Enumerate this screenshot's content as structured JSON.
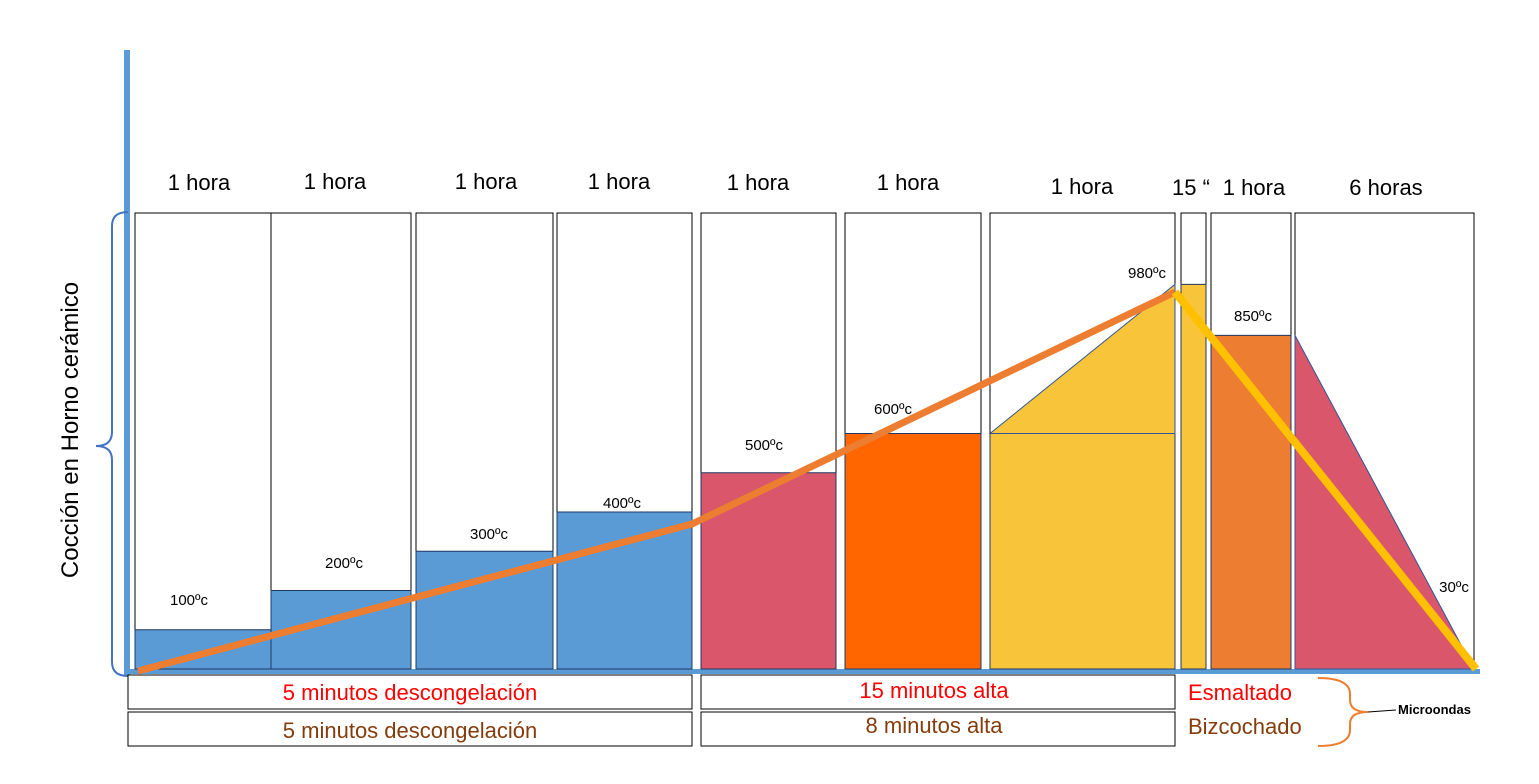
{
  "y_axis_label": "Cocción en Horno cerámico",
  "segments": [
    {
      "duration": "1 hora",
      "temp": "100ºc",
      "level": 100,
      "fill": "#5b9bd5"
    },
    {
      "duration": "1 hora",
      "temp": "200ºc",
      "level": 200,
      "fill": "#5b9bd5"
    },
    {
      "duration": "1 hora",
      "temp": "300ºc",
      "level": 300,
      "fill": "#5b9bd5"
    },
    {
      "duration": "1 hora",
      "temp": "400ºc",
      "level": 400,
      "fill": "#5b9bd5"
    },
    {
      "duration": "1 hora",
      "temp": "500ºc",
      "level": 500,
      "fill": "#d9566b"
    },
    {
      "duration": "1 hora",
      "temp": "600ºc",
      "level": 600,
      "fill": "#ff6600"
    },
    {
      "duration": "1 hora",
      "temp": "980ºc",
      "level": 980,
      "fill": "#f8c43a"
    },
    {
      "duration": "15 “",
      "temp": "",
      "level": 980,
      "fill": "#f8c43a"
    },
    {
      "duration": "1 hora",
      "temp": "850ºc",
      "level": 850,
      "fill": "#ed7d31"
    },
    {
      "duration": "6 horas",
      "temp": "30ºc",
      "level": 30,
      "fill": "#d9566b"
    }
  ],
  "bottom_rows": {
    "esmaltado": {
      "left": "5 minutos descongelación",
      "middle": "15 minutos alta",
      "label": "Esmaltado",
      "color": "#ff0000"
    },
    "bizcochado": {
      "left": "5 minutos descongelación",
      "middle": "8 minutos alta",
      "label": "Bizcochado",
      "color": "#843c0c"
    },
    "microondas_label": "Microondas"
  },
  "colors": {
    "axis": "#5b9bd5",
    "orange_line": "#ed7d31",
    "yellow_line": "#ffc000",
    "brace": "#4472c4",
    "microondas_brace": "#ed7d31"
  }
}
